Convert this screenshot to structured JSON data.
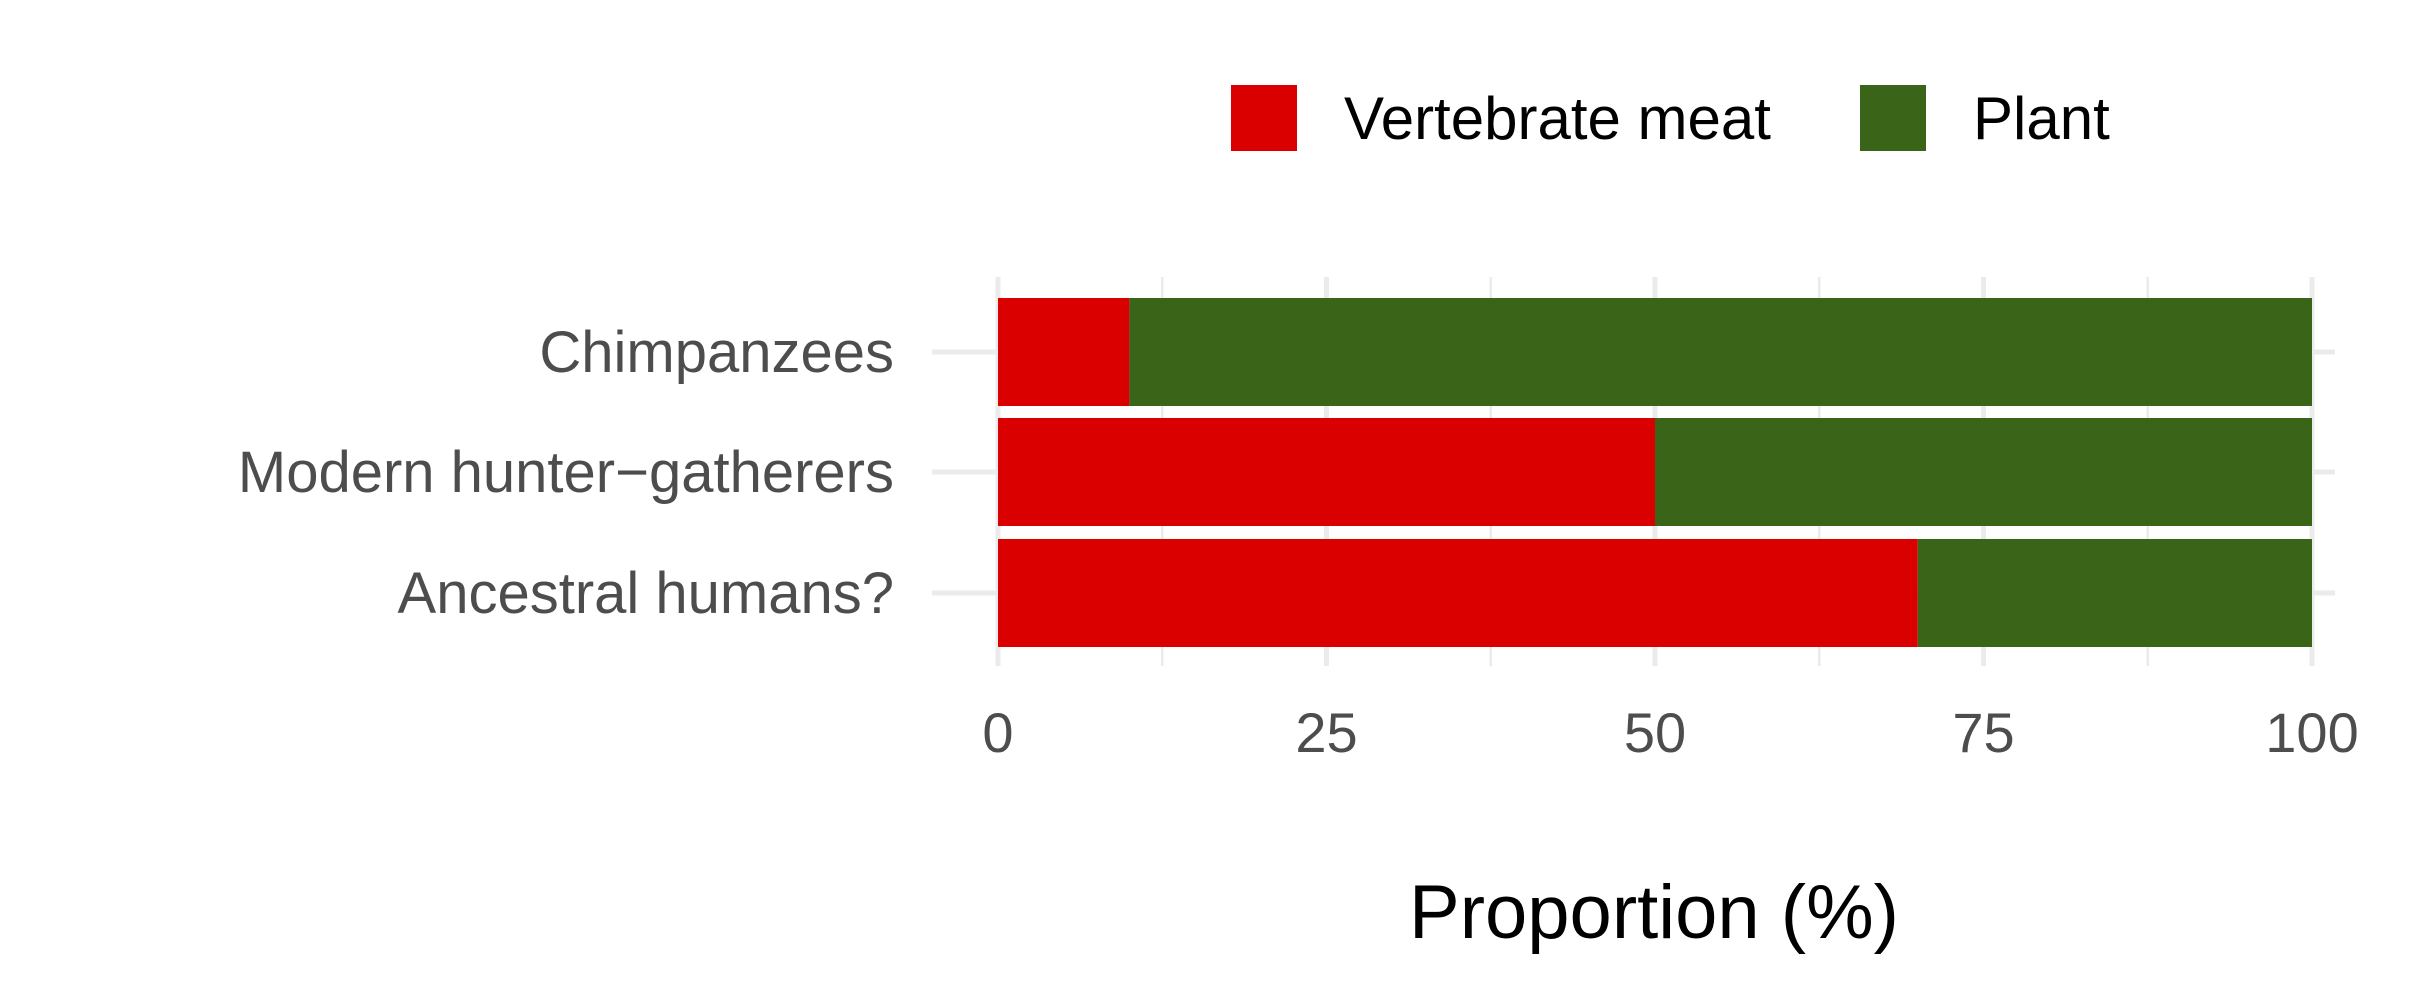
{
  "chart_data": {
    "type": "bar",
    "orientation": "horizontal",
    "stacked": true,
    "categories": [
      "Chimpanzees",
      "Modern hunter−gatherers",
      "Ancestral humans?"
    ],
    "series": [
      {
        "name": "Vertebrate meat",
        "color": "#DA0000",
        "values": [
          10,
          50,
          70
        ]
      },
      {
        "name": "Plant",
        "color": "#3A6418",
        "values": [
          90,
          50,
          30
        ]
      }
    ],
    "xlabel": "Proportion (%)",
    "ylabel": "",
    "xlim": [
      0,
      100
    ],
    "xticks": [
      "0",
      "25",
      "50",
      "75",
      "100"
    ],
    "grid": true,
    "legend_position": "top"
  }
}
